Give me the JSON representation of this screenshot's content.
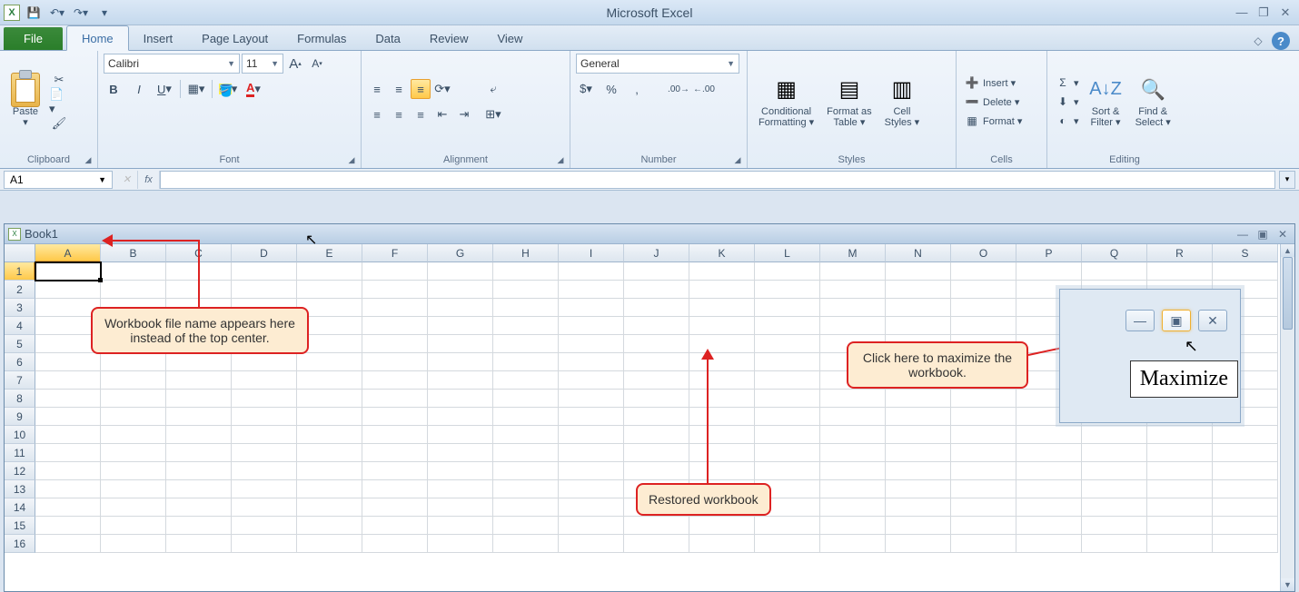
{
  "app": {
    "title": "Microsoft Excel"
  },
  "qat": {
    "save": "💾",
    "undo": "↶",
    "redo": "↷"
  },
  "tabs": {
    "file": "File",
    "items": [
      "Home",
      "Insert",
      "Page Layout",
      "Formulas",
      "Data",
      "Review",
      "View"
    ],
    "active": 0
  },
  "ribbon": {
    "clipboard": {
      "label": "Clipboard",
      "paste": "Paste"
    },
    "font": {
      "label": "Font",
      "name": "Calibri",
      "size": "11"
    },
    "alignment": {
      "label": "Alignment"
    },
    "number": {
      "label": "Number",
      "format": "General"
    },
    "styles": {
      "label": "Styles",
      "cond": "Conditional\nFormatting ▾",
      "table": "Format as\nTable ▾",
      "cell": "Cell\nStyles ▾"
    },
    "cells": {
      "label": "Cells",
      "insert": "Insert ▾",
      "delete": "Delete ▾",
      "format": "Format ▾"
    },
    "editing": {
      "label": "Editing",
      "sort": "Sort &\nFilter ▾",
      "find": "Find &\nSelect ▾"
    }
  },
  "namebox": "A1",
  "workbook": {
    "title": "Book1"
  },
  "columns": [
    "A",
    "B",
    "C",
    "D",
    "E",
    "F",
    "G",
    "H",
    "I",
    "J",
    "K",
    "L",
    "M",
    "N",
    "O",
    "P",
    "Q",
    "R",
    "S"
  ],
  "rows": 16,
  "activeCell": {
    "row": 1,
    "col": 0
  },
  "callouts": {
    "filename": "Workbook file name appears here instead of the top center.",
    "restored": "Restored workbook",
    "maximize": "Click here to maximize the workbook."
  },
  "tooltip": "Maximize",
  "colors": {
    "callout_bg": "#fdecd2",
    "callout_border": "#d22",
    "accent": "#4a8ac9",
    "ribbon_bg": "#e9f0f8"
  }
}
